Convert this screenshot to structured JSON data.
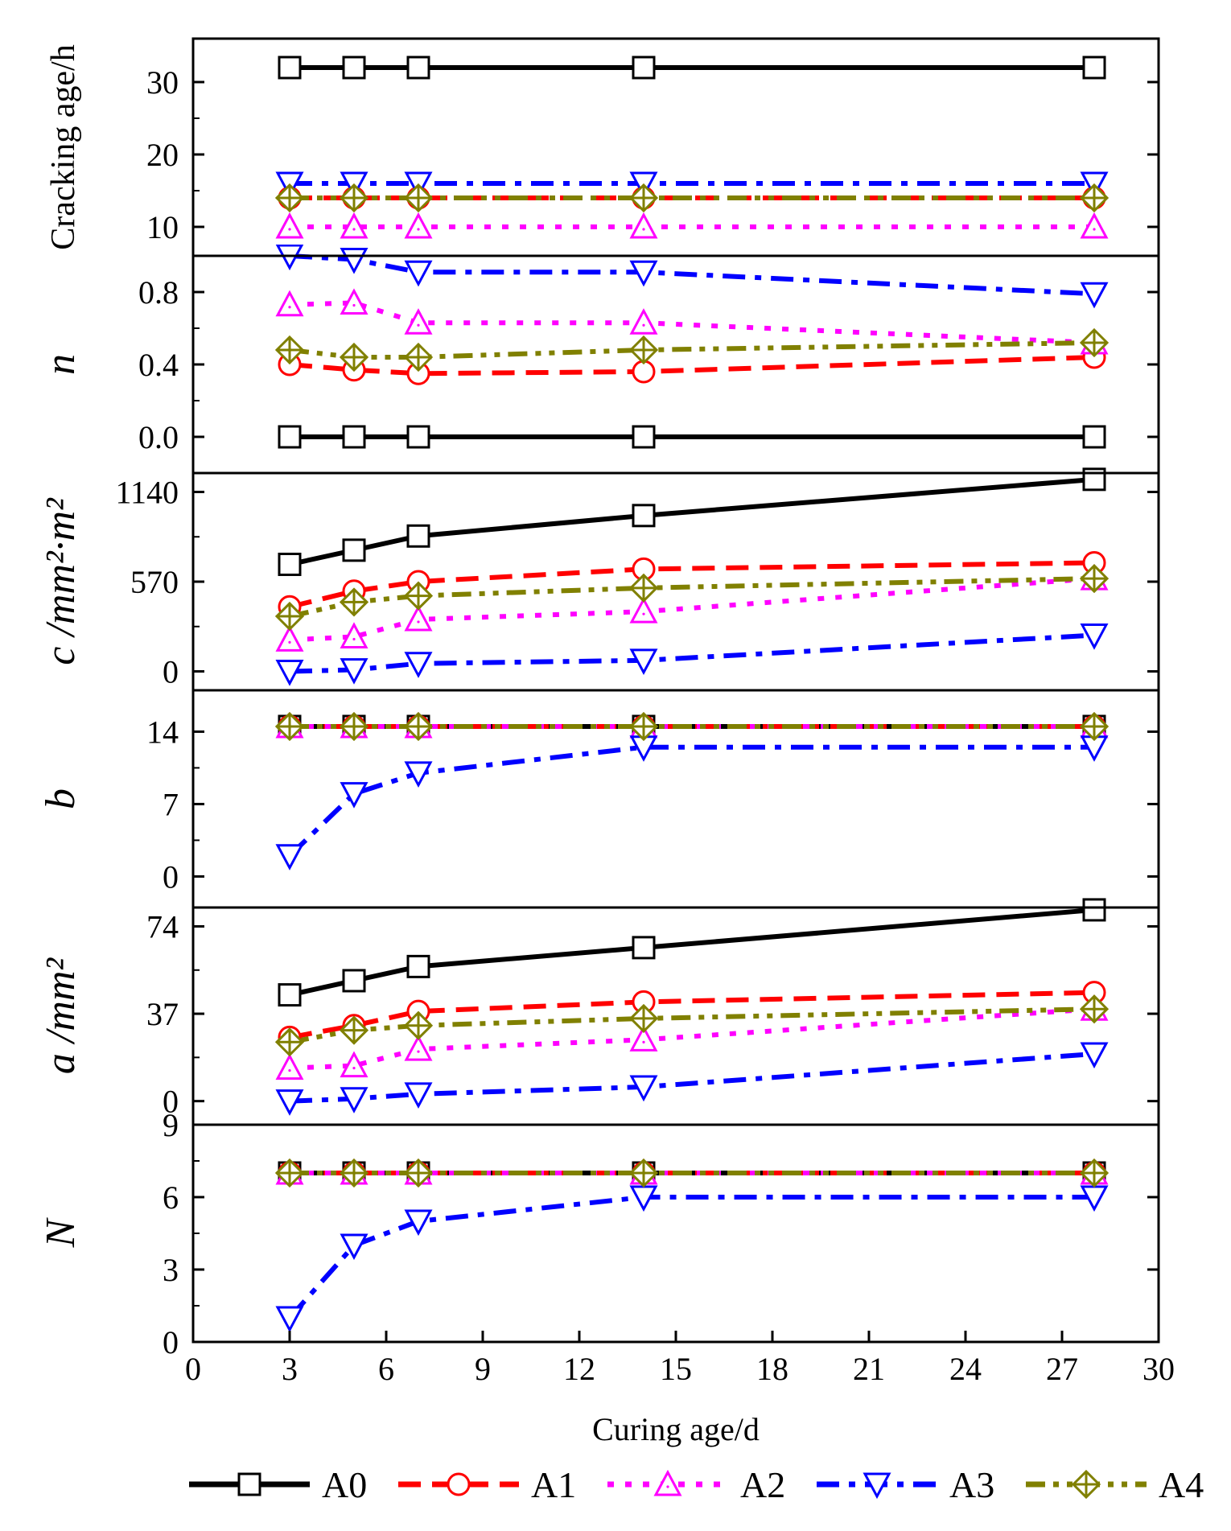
{
  "chart_data": {
    "type": "line",
    "xlabel": "Curing age/d",
    "xlim": [
      0,
      30
    ],
    "xticks": [
      0,
      3,
      6,
      9,
      12,
      15,
      18,
      21,
      24,
      27,
      30
    ],
    "x": [
      3,
      5,
      7,
      14,
      28
    ],
    "legend": {
      "placement": "bottom",
      "entries": [
        {
          "name": "A0",
          "color": "#000000",
          "marker": "square",
          "dash": "solid"
        },
        {
          "name": "A1",
          "color": "#ff0000",
          "marker": "circle",
          "dash": "dash"
        },
        {
          "name": "A2",
          "color": "#ff00ff",
          "marker": "triangle-up",
          "dash": "dot"
        },
        {
          "name": "A3",
          "color": "#0000ff",
          "marker": "triangle-down",
          "dash": "dash-dot"
        },
        {
          "name": "A4",
          "color": "#808000",
          "marker": "diamond-plus",
          "dash": "dash-dot-dot"
        }
      ]
    },
    "panels": [
      {
        "id": "cracking",
        "ylabel": "Cracking age/h",
        "ylim": [
          6,
          36
        ],
        "yticks": [
          10,
          20,
          30
        ],
        "ytick_labels": [
          "10",
          "20",
          "30"
        ],
        "series": [
          {
            "name": "A0",
            "values": [
              32,
              32,
              32,
              32,
              32
            ]
          },
          {
            "name": "A1",
            "values": [
              14,
              14,
              14,
              14,
              14
            ]
          },
          {
            "name": "A2",
            "values": [
              10,
              10,
              10,
              10,
              10
            ]
          },
          {
            "name": "A3",
            "values": [
              16,
              16,
              16,
              16,
              16
            ]
          },
          {
            "name": "A4",
            "values": [
              14,
              14,
              14,
              14,
              14
            ]
          }
        ]
      },
      {
        "id": "n",
        "ylabel": "n",
        "ylim": [
          -0.2,
          1.0
        ],
        "yticks": [
          0.0,
          0.4,
          0.8
        ],
        "ytick_labels": [
          "0.0",
          "0.4",
          "0.8"
        ],
        "series": [
          {
            "name": "A0",
            "values": [
              0,
              0,
              0,
              0,
              0
            ]
          },
          {
            "name": "A1",
            "values": [
              0.4,
              0.37,
              0.35,
              0.36,
              0.44
            ]
          },
          {
            "name": "A2",
            "values": [
              0.73,
              0.74,
              0.63,
              0.63,
              0.52
            ]
          },
          {
            "name": "A3",
            "values": [
              1.0,
              0.98,
              0.91,
              0.91,
              0.79
            ]
          },
          {
            "name": "A4",
            "values": [
              0.48,
              0.44,
              0.44,
              0.48,
              0.52
            ]
          }
        ]
      },
      {
        "id": "c",
        "ylabel": "c /mm²·m²",
        "ylim": [
          -120,
          1260
        ],
        "yticks": [
          0,
          570,
          1140
        ],
        "ytick_labels": [
          "0",
          "570",
          "1140"
        ],
        "series": [
          {
            "name": "A0",
            "values": [
              680,
              770,
              860,
              990,
              1220
            ]
          },
          {
            "name": "A1",
            "values": [
              410,
              510,
              570,
              650,
              690
            ]
          },
          {
            "name": "A2",
            "values": [
              200,
              220,
              330,
              380,
              590
            ]
          },
          {
            "name": "A3",
            "values": [
              0,
              10,
              50,
              70,
              230
            ]
          },
          {
            "name": "A4",
            "values": [
              350,
              440,
              480,
              530,
              590
            ]
          }
        ]
      },
      {
        "id": "b",
        "ylabel": "b",
        "ylim": [
          -3,
          18
        ],
        "yticks": [
          0,
          7,
          14
        ],
        "ytick_labels": [
          "0",
          "7",
          "14"
        ],
        "series": [
          {
            "name": "A0",
            "values": [
              14.5,
              14.5,
              14.5,
              14.5,
              14.5
            ]
          },
          {
            "name": "A1",
            "values": [
              14.5,
              14.5,
              14.5,
              14.5,
              14.5
            ]
          },
          {
            "name": "A2",
            "values": [
              14.5,
              14.5,
              14.5,
              14.5,
              14.5
            ]
          },
          {
            "name": "A3",
            "values": [
              2,
              8,
              10,
              12.5,
              12.5
            ]
          },
          {
            "name": "A4",
            "values": [
              14.5,
              14.5,
              14.5,
              14.5,
              14.5
            ]
          }
        ]
      },
      {
        "id": "a",
        "ylabel": "a /mm²",
        "ylim": [
          -10,
          82
        ],
        "yticks": [
          0,
          37,
          74
        ],
        "ytick_labels": [
          "0",
          "37",
          "74"
        ],
        "series": [
          {
            "name": "A0",
            "values": [
              45,
              51,
              57,
              65,
              81
            ]
          },
          {
            "name": "A1",
            "values": [
              27,
              32,
              38,
              42,
              46
            ]
          },
          {
            "name": "A2",
            "values": [
              14,
              15,
              22,
              26,
              39
            ]
          },
          {
            "name": "A3",
            "values": [
              0,
              1,
              3,
              6,
              20
            ]
          },
          {
            "name": "A4",
            "values": [
              25,
              30,
              32,
              35,
              39
            ]
          }
        ]
      },
      {
        "id": "N",
        "ylabel": "N",
        "ylim": [
          0,
          9
        ],
        "yticks": [
          0,
          3,
          6,
          9
        ],
        "ytick_labels": [
          "0",
          "3",
          "6",
          "9"
        ],
        "series": [
          {
            "name": "A0",
            "values": [
              7,
              7,
              7,
              7,
              7
            ]
          },
          {
            "name": "A1",
            "values": [
              7,
              7,
              7,
              7,
              7
            ]
          },
          {
            "name": "A2",
            "values": [
              7,
              7,
              7,
              7,
              7
            ]
          },
          {
            "name": "A3",
            "values": [
              1,
              4,
              5,
              6,
              6
            ]
          },
          {
            "name": "A4",
            "values": [
              7,
              7,
              7,
              7,
              7
            ]
          }
        ]
      }
    ]
  }
}
